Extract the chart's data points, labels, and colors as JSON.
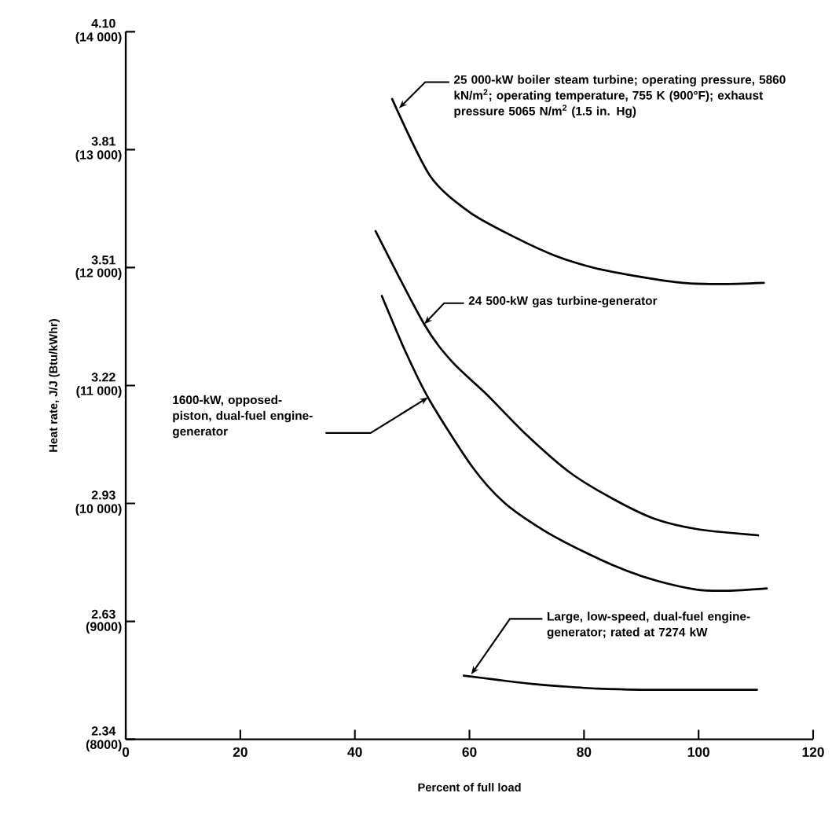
{
  "chart_data": {
    "type": "line",
    "xlabel": "Percent of full load",
    "ylabel": "Heat rate, J/J (Btu/kWhr)",
    "xlim": [
      0,
      120
    ],
    "ylim": [
      8000,
      14000
    ],
    "xticks": [
      0,
      20,
      40,
      60,
      80,
      100,
      120
    ],
    "yticks": [
      {
        "value": 8000,
        "label": "(8000)"
      },
      {
        "value": 9000,
        "label": "(9000)"
      },
      {
        "value": 10000,
        "label": "(10 000)"
      },
      {
        "value": 11000,
        "label": "(11 000)"
      },
      {
        "value": 12000,
        "label": "(12 000)"
      },
      {
        "value": 13000,
        "label": "(13 000)"
      },
      {
        "value": 14000,
        "label": "(14 000)"
      }
    ],
    "y2lim": [
      2.3446,
      4.103
    ],
    "y2ticks": [
      {
        "value": 2.3446,
        "label": "2.34"
      },
      {
        "value": 2.6349,
        "label": "2.63"
      },
      {
        "value": 2.9307,
        "label": "2.93"
      },
      {
        "value": 3.2238,
        "label": "3.22"
      },
      {
        "value": 3.5149,
        "label": "3.51"
      },
      {
        "value": 3.8099,
        "label": "3.81"
      },
      {
        "value": 4.103,
        "label": "4.10"
      }
    ],
    "marker": "none",
    "line_style": "solid",
    "series": [
      {
        "color": "#000000",
        "x": [
          46.5,
          53.1,
          60,
          67.8,
          75,
          82.4,
          90,
          97.2,
          104,
          111.4
        ],
        "values": [
          13430,
          12780,
          12470,
          12260,
          12100,
          11990,
          11920,
          11870,
          11860,
          11870
        ]
      },
      {
        "color": "#000000",
        "x": [
          43.6,
          52.1,
          57,
          62.9,
          70,
          77.6,
          85,
          92.3,
          100,
          110.4
        ],
        "values": [
          12310,
          11520,
          11200,
          10930,
          10580,
          10260,
          10040,
          9870,
          9780,
          9730
        ]
      },
      {
        "color": "#000000",
        "x": [
          44.7,
          49,
          53.1,
          60.5,
          66,
          72.7,
          80,
          87.4,
          93,
          99.6,
          105,
          111.9
        ],
        "values": [
          11760,
          11270,
          10870,
          10310,
          10010,
          9780,
          9590,
          9430,
          9340,
          9270,
          9260,
          9280
        ]
      },
      {
        "color": "#000000",
        "x": [
          59,
          64,
          70.9,
          76,
          82.3,
          90,
          96,
          103,
          110.2
        ],
        "values": [
          8540,
          8510,
          8470,
          8450,
          8430,
          8420,
          8420,
          8420,
          8420
        ]
      }
    ],
    "annotations": [
      {
        "text": "25 000-kW boiler steam turbine; operating pressure, 5860 kN/m$^{2}$; operating temperature, 755 K (900°F); exhaust pressure 5065 N/m$^{2}$ (1.5 in. Hg)",
        "x": 47.7,
        "y": 13350
      },
      {
        "text": "24 500-kW gas turbine-generator",
        "x": 52.1,
        "y": 11520
      },
      {
        "text": "1600-kW, opposed-piston, dual-fuel engine-generator",
        "x": 52.8,
        "y": 10900
      },
      {
        "text": "Large, low-speed, dual-fuel engine-generator; rated at 7274 kW",
        "x": 60.3,
        "y": 8550
      }
    ]
  }
}
